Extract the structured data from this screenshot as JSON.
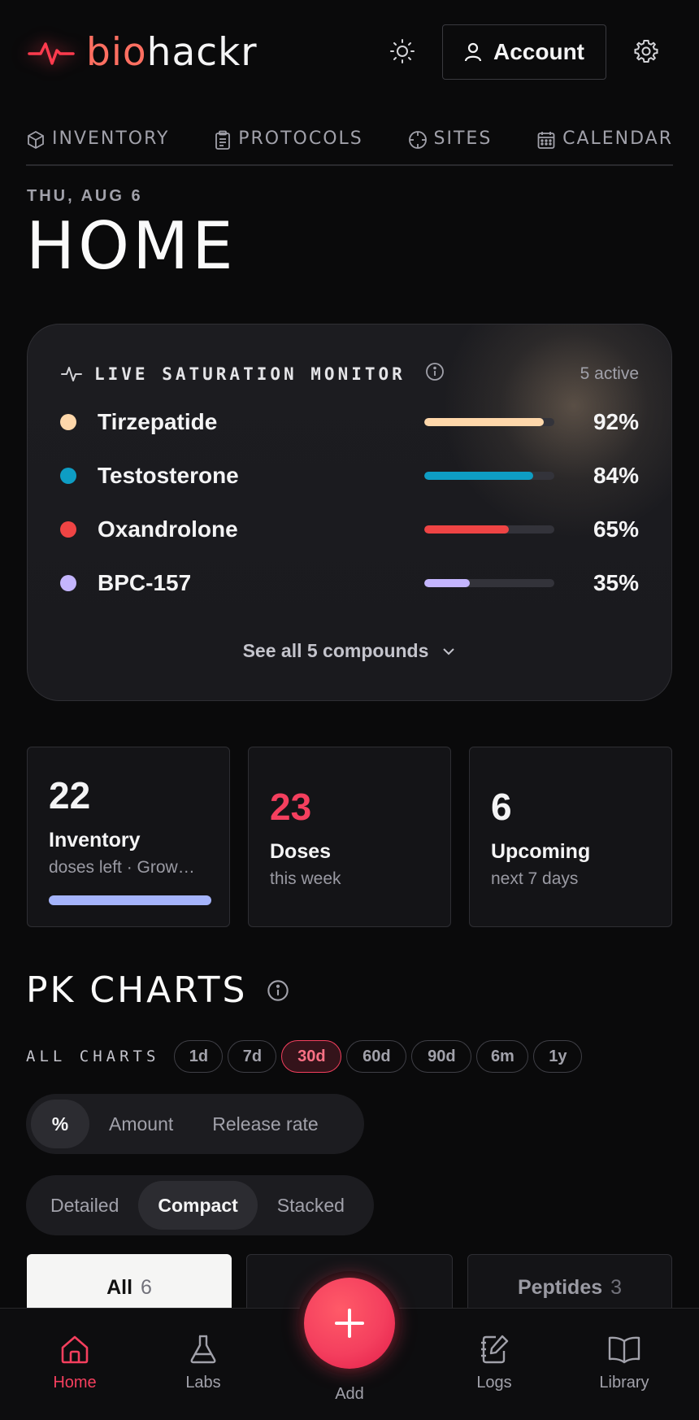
{
  "header": {
    "logo_bio": "bio",
    "logo_hackr": "hackr",
    "account_label": "Account"
  },
  "tabs": [
    {
      "label": "INVENTORY",
      "icon": "box-icon"
    },
    {
      "label": "PROTOCOLS",
      "icon": "clipboard-icon"
    },
    {
      "label": "SITES",
      "icon": "crosshair-icon"
    },
    {
      "label": "CALENDAR",
      "icon": "calendar-icon"
    }
  ],
  "page": {
    "date": "THU, AUG 6",
    "title": "HOME"
  },
  "saturation": {
    "title": "LIVE SATURATION MONITOR",
    "active": "5 active",
    "see_all": "See all 5 compounds",
    "items": [
      {
        "name": "Tirzepatide",
        "pct_label": "92%",
        "pct": 92,
        "color": "#fed7aa"
      },
      {
        "name": "Testosterone",
        "pct_label": "84%",
        "pct": 84,
        "color": "#0e9dc4"
      },
      {
        "name": "Oxandrolone",
        "pct_label": "65%",
        "pct": 65,
        "color": "#ef4444"
      },
      {
        "name": "BPC-157",
        "pct_label": "35%",
        "pct": 35,
        "color": "#c4b5fd"
      }
    ]
  },
  "stats": [
    {
      "num": "22",
      "label": "Inventory",
      "sub": "doses left · Grow…",
      "color": "#fafafa"
    },
    {
      "num": "23",
      "label": "Doses",
      "sub": "this week",
      "color": "#f43f5e"
    },
    {
      "num": "6",
      "label": "Upcoming",
      "sub": "next 7 days",
      "color": "#fafafa"
    }
  ],
  "pk": {
    "title": "PK CHARTS",
    "range_label": "ALL CHARTS",
    "ranges": [
      "1d",
      "7d",
      "30d",
      "60d",
      "90d",
      "6m",
      "1y"
    ],
    "active_range": "30d",
    "modes": [
      "%",
      "Amount",
      "Release rate"
    ],
    "views": [
      "Detailed",
      "Compact",
      "Stacked"
    ],
    "categories": [
      {
        "label": "All",
        "count": "6"
      },
      {
        "label": "",
        "count": ""
      },
      {
        "label": "Peptides",
        "count": "3"
      }
    ]
  },
  "nav": {
    "home": "Home",
    "labs": "Labs",
    "add": "Add",
    "logs": "Logs",
    "library": "Library"
  }
}
